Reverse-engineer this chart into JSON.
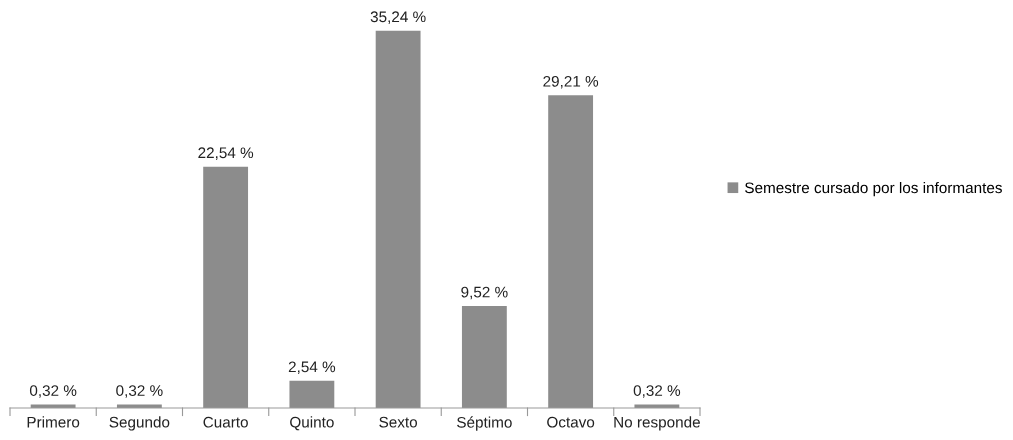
{
  "chart_data": {
    "type": "bar",
    "categories": [
      "Primero",
      "Segundo",
      "Cuarto",
      "Quinto",
      "Sexto",
      "Séptimo",
      "Octavo",
      "No responde"
    ],
    "series": [
      {
        "name": "Semestre cursado por los informantes",
        "color": "#8c8c8c",
        "values": [
          0.32,
          0.32,
          22.54,
          2.54,
          35.24,
          9.52,
          29.21,
          0.32
        ],
        "value_labels": [
          "0,32 %",
          "0,32 %",
          "22,54 %",
          "2,54 %",
          "35,24 %",
          "9,52 %",
          "29,21 %",
          "0,32 %"
        ]
      }
    ],
    "legend": "right",
    "grid": false
  }
}
